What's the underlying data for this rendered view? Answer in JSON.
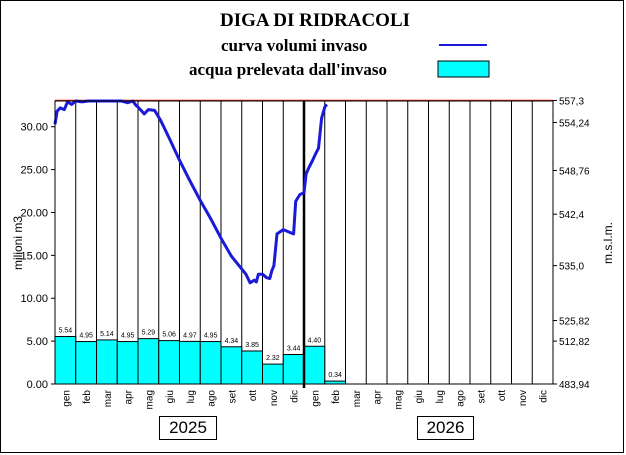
{
  "colors": {
    "line": "#1a1ad8",
    "bar": "#00ffff",
    "limit": "#d81818",
    "grid": "#000000"
  },
  "chart_data": {
    "type": "bar+line",
    "title": "DIGA DI RIDRACOLI",
    "legend": {
      "line_label": "curva volumi  invaso",
      "bar_label": "acqua prelevata dall'invaso",
      "placement": "top-right"
    },
    "ylabel_left": "milioni m3",
    "ylabel_right": "m.s.l.m.",
    "ylim_left": [
      0,
      33
    ],
    "left_ticks": [
      "0.00",
      "5.00",
      "10.00",
      "15.00",
      "20.00",
      "25.00",
      "30.00"
    ],
    "right_ticks": [
      "483,94",
      "512,82",
      "525,82",
      "535,0",
      "542,4",
      "548,76",
      "554,24",
      "557,3"
    ],
    "months": [
      "gen",
      "feb",
      "mar",
      "apr",
      "mag",
      "giu",
      "lug",
      "ago",
      "set",
      "ott",
      "nov",
      "dic",
      "gen",
      "feb",
      "mar",
      "apr",
      "mag",
      "giu",
      "lug",
      "ago",
      "set",
      "ott",
      "nov",
      "dic"
    ],
    "years": [
      "2025",
      "2026"
    ],
    "bars": {
      "values": [
        5.54,
        4.95,
        5.14,
        4.95,
        5.29,
        5.06,
        4.97,
        4.95,
        4.34,
        3.85,
        2.32,
        3.44,
        4.4,
        0.34
      ],
      "labels": [
        "5.54",
        "4.95",
        "5.14",
        "4.95",
        "5.29",
        "5.06",
        "4.97",
        "4.95",
        "4.34",
        "3.85",
        "2.32",
        "3.44",
        "4.40",
        "0.34"
      ]
    },
    "max_volume_line": 33.06,
    "volume_curve": {
      "x": [
        0.0,
        0.1,
        0.25,
        0.45,
        0.6,
        0.8,
        1.0,
        1.3,
        1.6,
        2.0,
        2.5,
        3.0,
        3.2,
        3.5,
        3.75,
        3.9,
        4.0,
        4.15,
        4.3,
        4.5,
        4.8,
        5.1,
        5.5,
        6.0,
        6.5,
        7.0,
        7.5,
        8.0,
        8.5,
        9.0,
        9.2,
        9.4,
        9.6,
        9.7,
        9.8,
        10.0,
        10.2,
        10.35,
        10.45,
        10.55,
        10.7,
        11.0,
        11.3,
        11.4,
        11.5,
        11.6,
        11.8,
        12.0,
        12.1,
        12.25,
        12.4,
        12.55,
        12.7,
        12.85,
        13.0,
        13.1
      ],
      "y": [
        30.3,
        31.8,
        32.2,
        32.0,
        32.9,
        32.6,
        33.0,
        32.9,
        33.0,
        33.0,
        33.0,
        33.0,
        33.0,
        32.8,
        33.0,
        32.5,
        32.3,
        31.9,
        31.5,
        32.0,
        31.9,
        30.7,
        28.7,
        26.1,
        23.7,
        21.4,
        19.3,
        17.0,
        14.9,
        13.4,
        12.8,
        11.8,
        12.1,
        11.9,
        12.8,
        12.8,
        12.4,
        12.3,
        13.2,
        13.8,
        17.5,
        18.0,
        17.7,
        17.6,
        17.5,
        21.3,
        22.1,
        22.3,
        24.5,
        25.3,
        26.0,
        26.8,
        27.5,
        31.0,
        32.3,
        32.6
      ]
    },
    "grid": "vertical-per-month"
  }
}
